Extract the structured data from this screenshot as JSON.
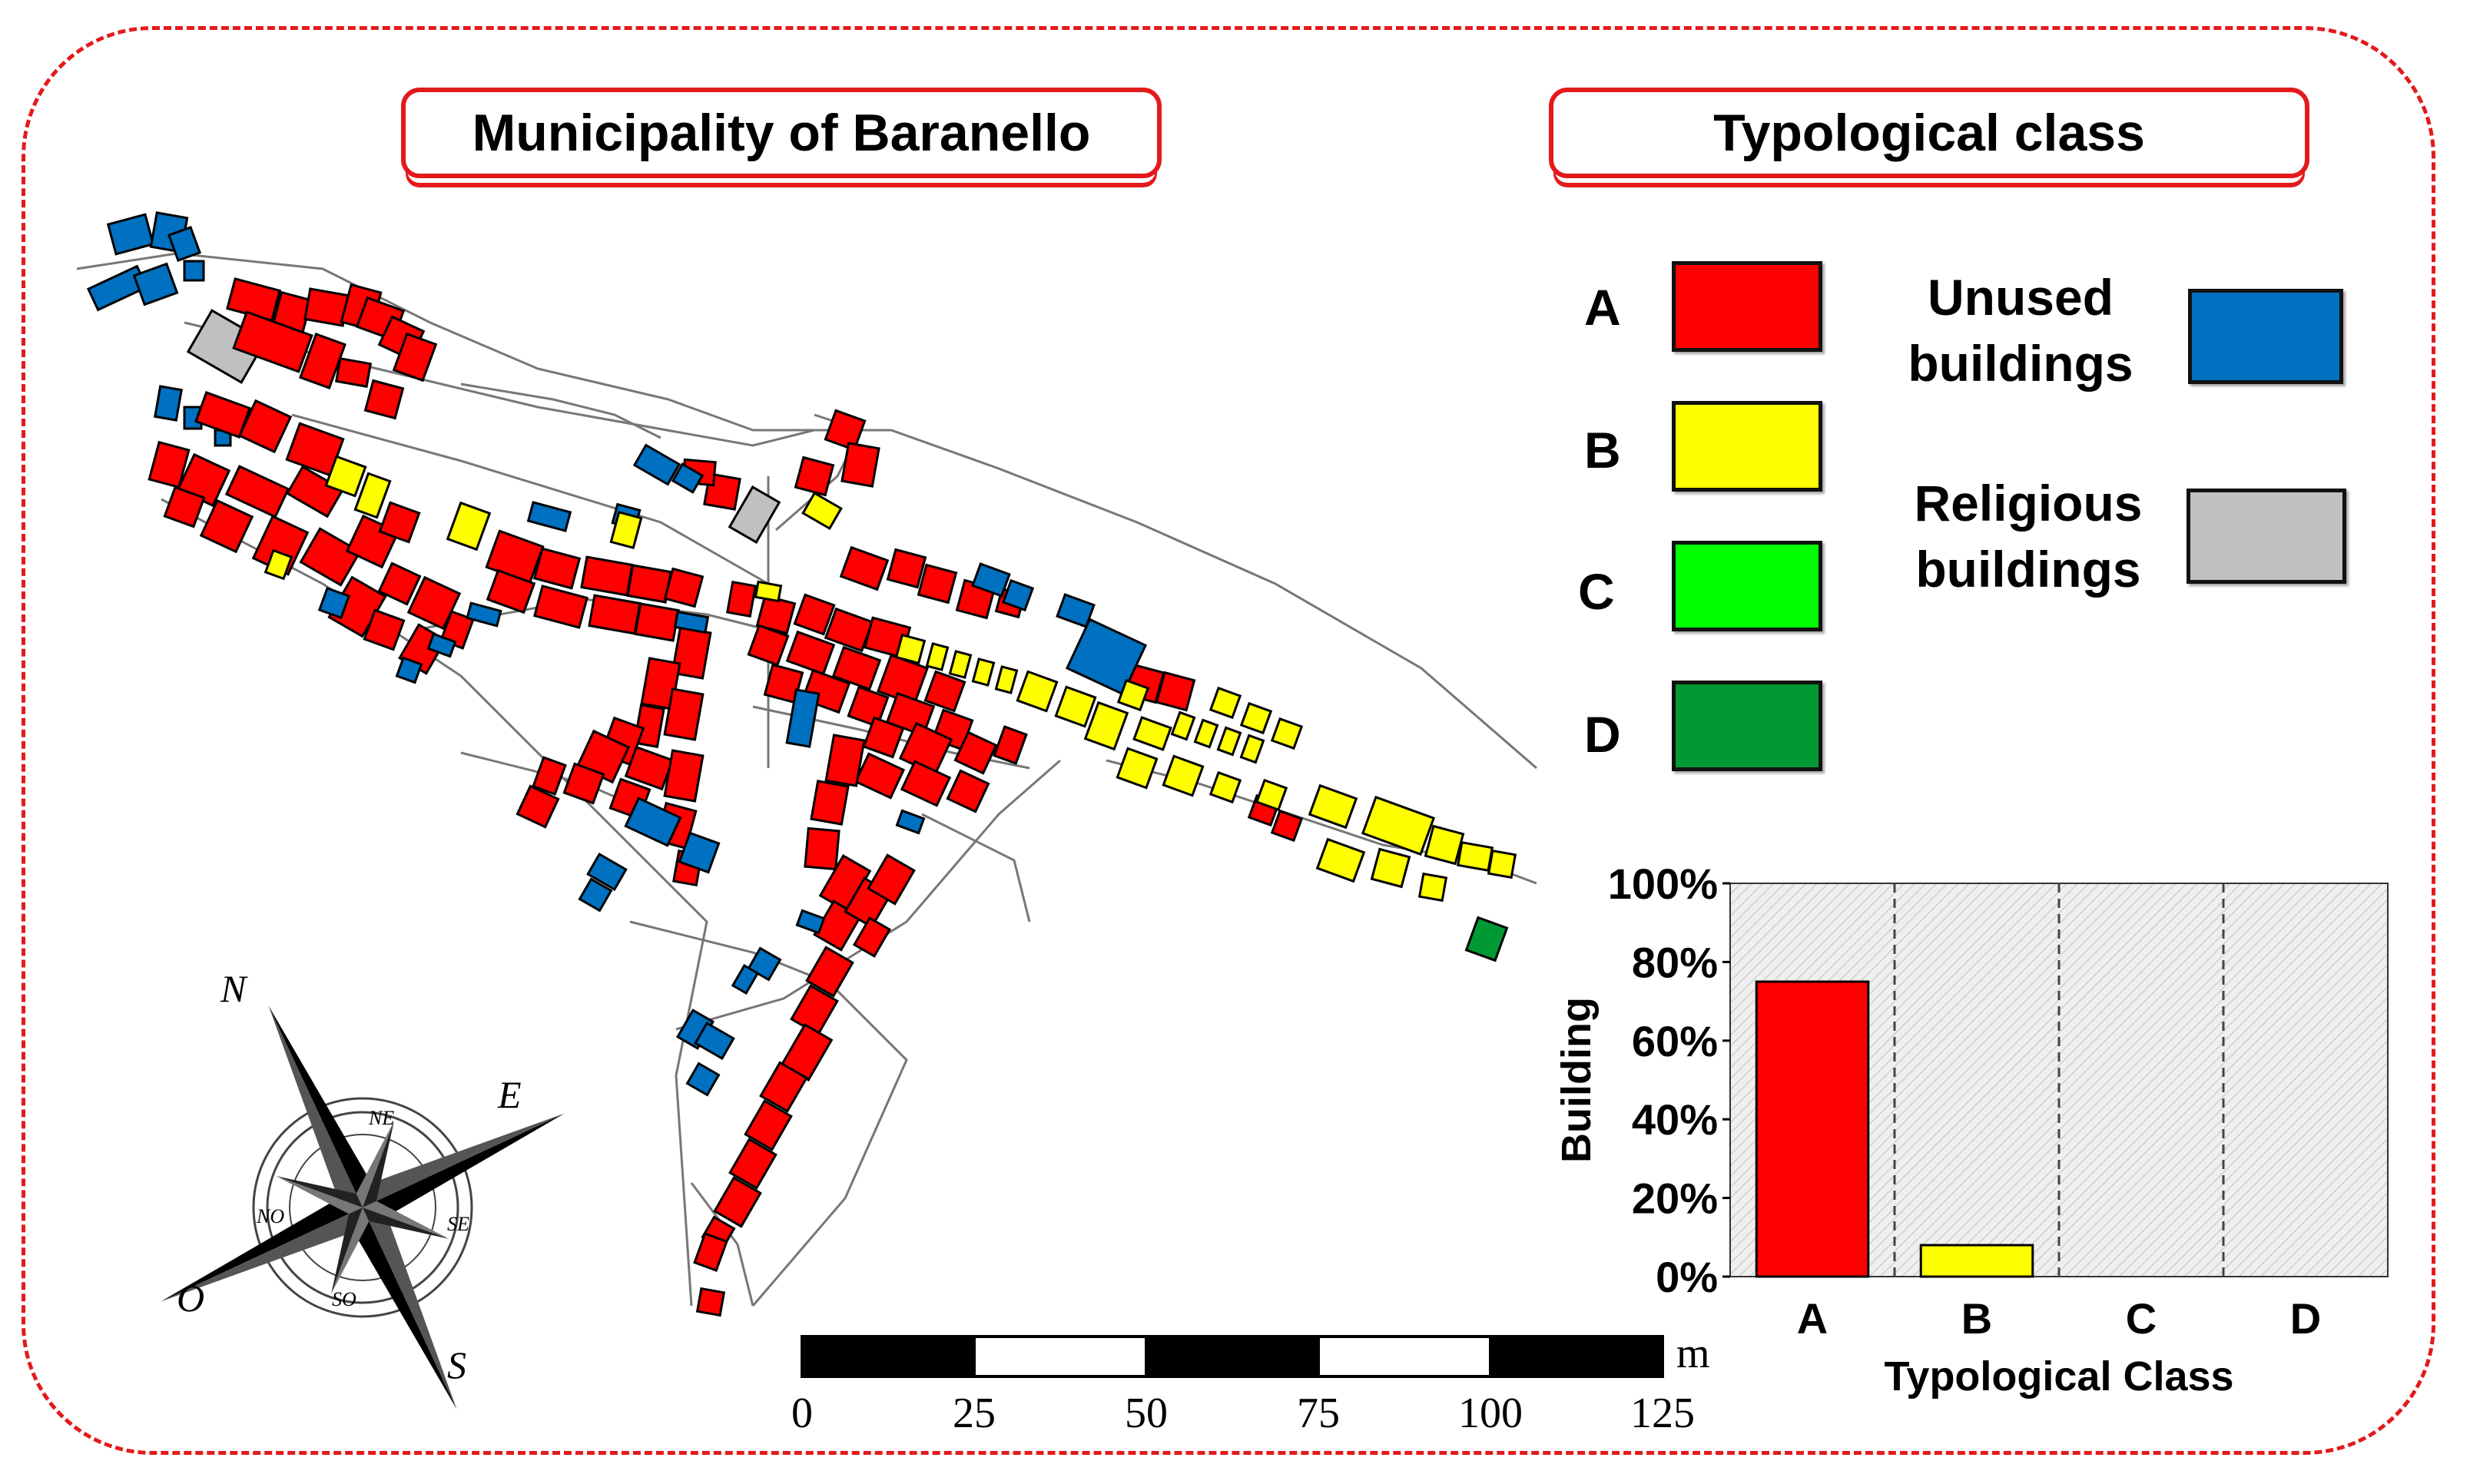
{
  "titles": {
    "map": "Municipality of Baranello",
    "legend": "Typological class"
  },
  "legend": {
    "items": [
      {
        "letter": "A",
        "color": "#ff0000"
      },
      {
        "letter": "B",
        "color": "#ffff00"
      },
      {
        "letter": "C",
        "color": "#00ff00"
      },
      {
        "letter": "D",
        "color": "#009933"
      }
    ],
    "unused": {
      "line1": "Unused",
      "line2": "buildings",
      "color": "#0070c0"
    },
    "religious": {
      "line1": "Religious",
      "line2": "buildings",
      "color": "#c0c0c0"
    }
  },
  "compass": {
    "north": "N",
    "east": "E",
    "south": "S",
    "west": "O",
    "northeast": "NE",
    "southeast": "SE",
    "southwest": "SO",
    "northwest": "NO"
  },
  "scale_bar": {
    "labels": [
      "0",
      "25",
      "50",
      "75",
      "100",
      "125"
    ],
    "unit": "m"
  },
  "chart_data": {
    "type": "bar",
    "categories": [
      "A",
      "B",
      "C",
      "D"
    ],
    "values": [
      75,
      8,
      0,
      0
    ],
    "colors": [
      "#ff0000",
      "#ffff00",
      "#00ff00",
      "#009933"
    ],
    "xlabel": "Typological Class",
    "ylabel": "Building",
    "ylim": [
      0,
      100
    ],
    "yticks": [
      "0%",
      "20%",
      "40%",
      "60%",
      "80%",
      "100%"
    ],
    "grid": "vertical dashed separators"
  }
}
